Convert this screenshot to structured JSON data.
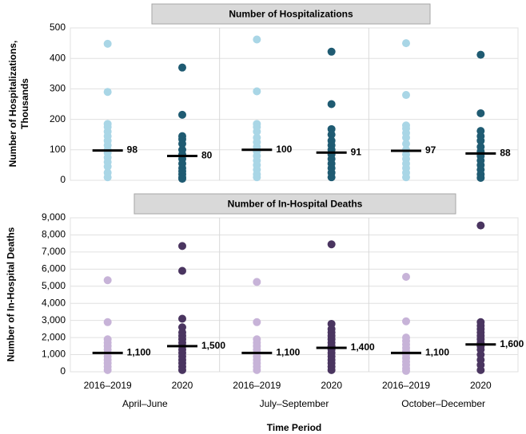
{
  "chart_data": [
    {
      "type": "strip",
      "title": "Number of Hospitalizations",
      "ylabel": "Number of Hospitalizations, Thousands",
      "ylim": [
        0,
        500
      ],
      "yticks": [
        0,
        100,
        200,
        300,
        400,
        500
      ],
      "grid": true,
      "colors": [
        "#a9d6e6",
        "#1f5b72",
        "#a9d6e6",
        "#1f5b72",
        "#a9d6e6",
        "#1f5b72"
      ],
      "points": [
        [
          448,
          290,
          185,
          175,
          160,
          145,
          130,
          115,
          100,
          90,
          75,
          60,
          45,
          25,
          10
        ],
        [
          370,
          215,
          145,
          135,
          120,
          100,
          85,
          70,
          55,
          40,
          30,
          20,
          10,
          5
        ],
        [
          462,
          292,
          185,
          175,
          160,
          140,
          125,
          110,
          95,
          80,
          65,
          50,
          35,
          20,
          10
        ],
        [
          422,
          250,
          168,
          150,
          130,
          115,
          100,
          85,
          70,
          55,
          40,
          25,
          10
        ],
        [
          450,
          280,
          180,
          170,
          155,
          140,
          120,
          100,
          85,
          70,
          55,
          40,
          25,
          10
        ],
        [
          412,
          220,
          162,
          145,
          130,
          110,
          95,
          80,
          65,
          50,
          35,
          20,
          8
        ]
      ],
      "values": [
        98,
        80,
        100,
        91,
        97,
        88
      ]
    },
    {
      "type": "strip",
      "title": "Number of In-Hospital Deaths",
      "ylabel": "Number of In-Hospital Deaths",
      "xlabel": "Time Period",
      "categories": [
        "2016–2019",
        "2020",
        "2016–2019",
        "2020",
        "2016–2019",
        "2020"
      ],
      "periods": [
        "April–June",
        "July–September",
        "October–December"
      ],
      "ylim": [
        0,
        9000
      ],
      "yticks": [
        0,
        {
          "value": 1000,
          "label": "1,000"
        },
        {
          "value": 2000,
          "label": "2,000"
        },
        {
          "value": 3000,
          "label": "3,000"
        },
        {
          "value": 4000,
          "label": "4,000"
        },
        {
          "value": 5000,
          "label": "5,000"
        },
        {
          "value": 6000,
          "label": "6,000"
        },
        {
          "value": 7000,
          "label": "7,000"
        },
        {
          "value": 8000,
          "label": "8,000"
        },
        {
          "value": 9000,
          "label": "9,000"
        }
      ],
      "grid": true,
      "colors": [
        "#c7b3d8",
        "#4a3560",
        "#c7b3d8",
        "#4a3560",
        "#c7b3d8",
        "#4a3560"
      ],
      "points": [
        [
          5350,
          2900,
          1900,
          1700,
          1500,
          1300,
          1100,
          900,
          700,
          500,
          300,
          100
        ],
        [
          7350,
          5900,
          3100,
          2600,
          2300,
          2100,
          1900,
          1700,
          1500,
          1300,
          1100,
          900,
          700,
          500,
          300,
          100
        ],
        [
          5250,
          2900,
          1900,
          1700,
          1500,
          1300,
          1100,
          900,
          700,
          500,
          300,
          100
        ],
        [
          7450,
          2800,
          2500,
          2300,
          2100,
          1900,
          1700,
          1500,
          1300,
          1100,
          900,
          700,
          500,
          300,
          100
        ],
        [
          5550,
          2950,
          2000,
          1800,
          1600,
          1400,
          1200,
          1000,
          800,
          600,
          400,
          200,
          50
        ],
        [
          8550,
          2900,
          2700,
          2500,
          2300,
          2100,
          1900,
          1700,
          1500,
          1300,
          1000,
          700,
          400,
          100
        ]
      ],
      "values": [
        1100,
        1500,
        1100,
        1400,
        1100,
        1600
      ],
      "value_labels": [
        "1,100",
        "1,500",
        "1,100",
        "1,400",
        "1,100",
        "1,600"
      ]
    }
  ]
}
